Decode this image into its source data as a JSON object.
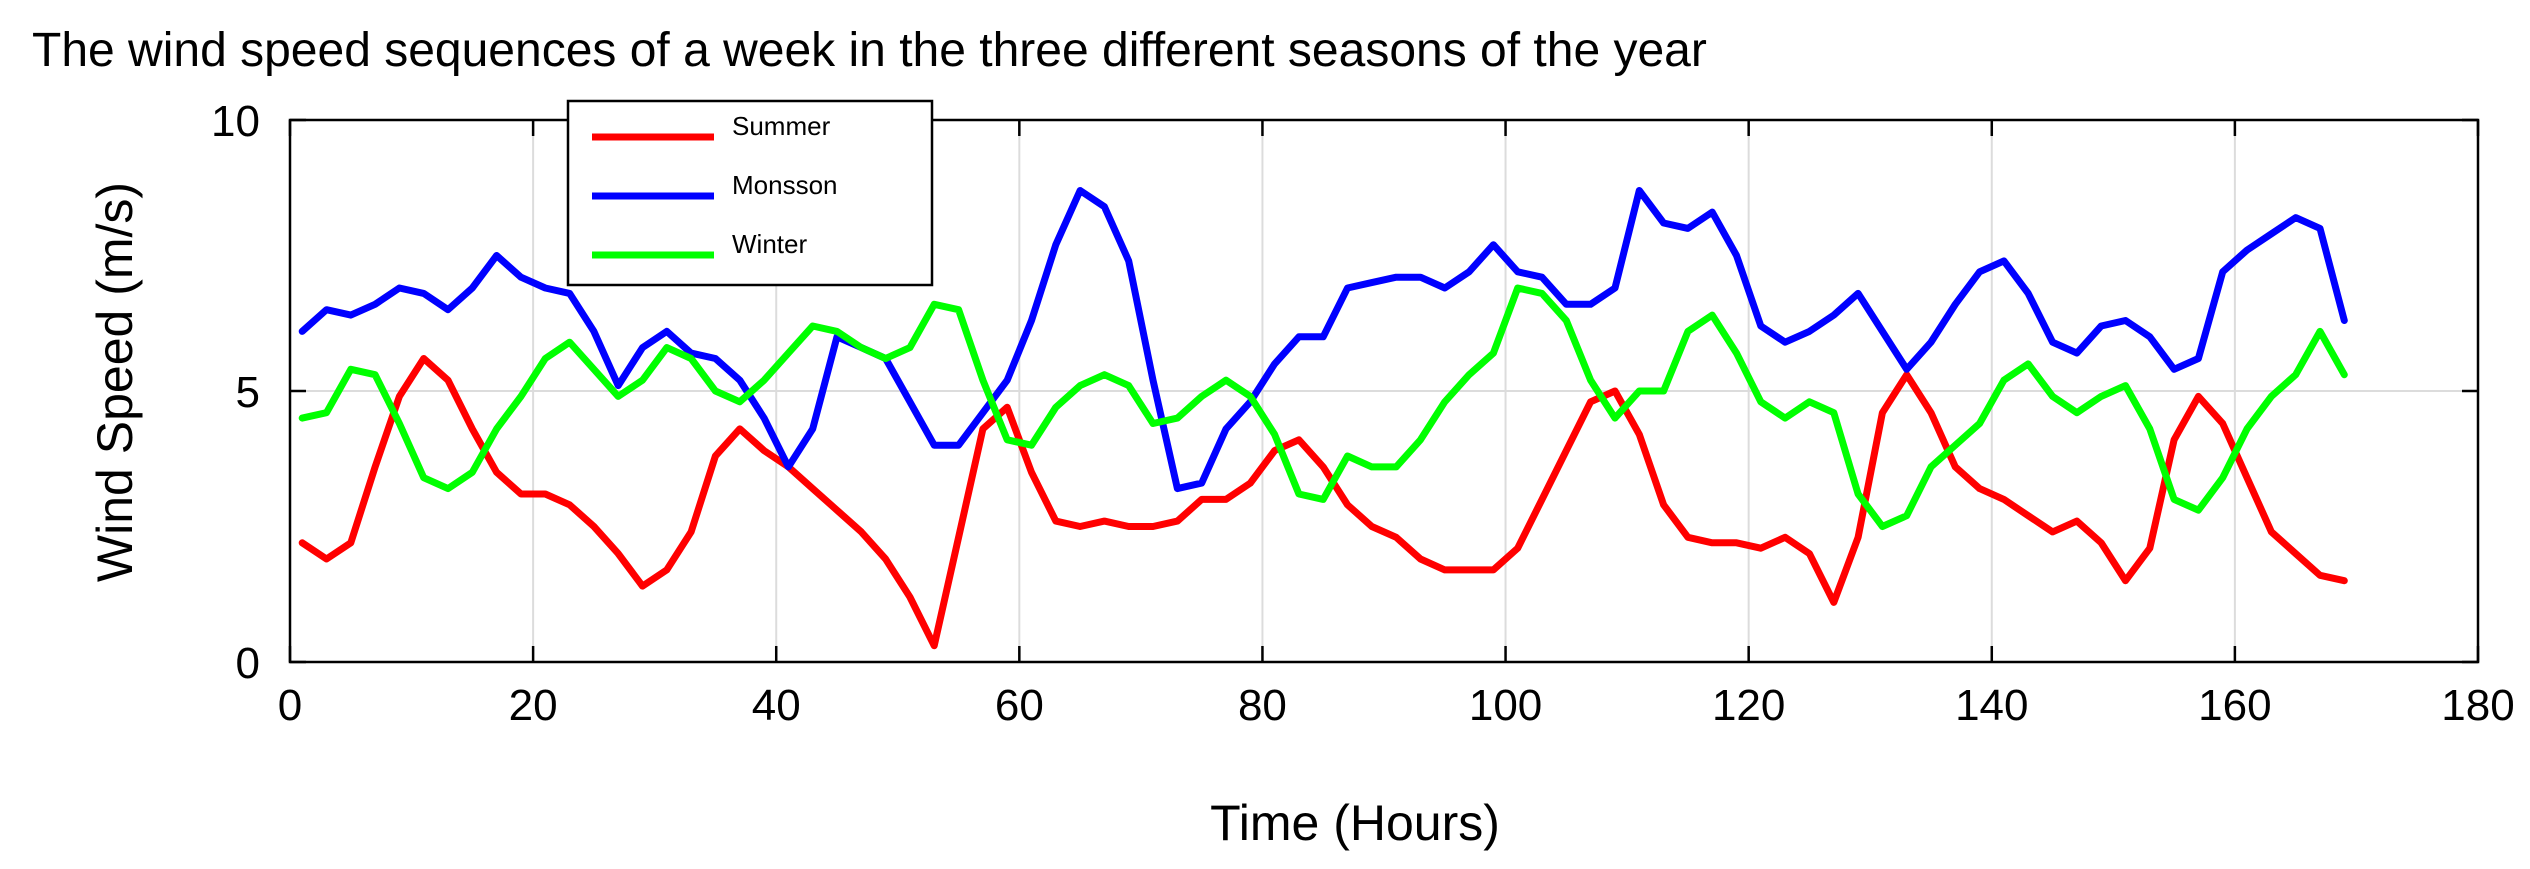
{
  "chart_data": {
    "type": "line",
    "title": "The wind speed sequences of a week in the three different seasons of the year",
    "xlabel": "Time (Hours)",
    "ylabel": "Wind Speed (m/s)",
    "xlim": [
      0,
      180
    ],
    "ylim": [
      0,
      10
    ],
    "xticks": [
      0,
      20,
      40,
      60,
      80,
      100,
      120,
      140,
      160,
      180
    ],
    "yticks": [
      0,
      5,
      10
    ],
    "grid": true,
    "legend_position": "top-left",
    "x": [
      1,
      3,
      5,
      7,
      9,
      11,
      13,
      15,
      17,
      19,
      21,
      23,
      25,
      27,
      29,
      31,
      33,
      35,
      37,
      39,
      41,
      43,
      45,
      47,
      49,
      51,
      53,
      55,
      57,
      59,
      61,
      63,
      65,
      67,
      69,
      71,
      73,
      75,
      77,
      79,
      81,
      83,
      85,
      87,
      89,
      91,
      93,
      95,
      97,
      99,
      101,
      103,
      105,
      107,
      109,
      111,
      113,
      115,
      117,
      119,
      121,
      123,
      125,
      127,
      129,
      131,
      133,
      135,
      137,
      139,
      141,
      143,
      145,
      147,
      149,
      151,
      153,
      155,
      157,
      159,
      161,
      163,
      165,
      167,
      169
    ],
    "series": [
      {
        "name": "Summer",
        "color": "#ff0000",
        "values": [
          2.2,
          1.9,
          2.2,
          3.6,
          4.9,
          5.6,
          5.2,
          4.3,
          3.5,
          3.1,
          3.1,
          2.9,
          2.5,
          2.0,
          1.4,
          1.7,
          2.4,
          3.8,
          4.3,
          3.9,
          3.6,
          3.2,
          2.8,
          2.4,
          1.9,
          1.2,
          0.3,
          2.3,
          4.3,
          4.7,
          3.5,
          2.6,
          2.5,
          2.6,
          2.5,
          2.5,
          2.6,
          3.0,
          3.0,
          3.3,
          3.9,
          4.1,
          3.6,
          2.9,
          2.5,
          2.3,
          1.9,
          1.7,
          1.7,
          1.7,
          2.1,
          3.0,
          3.9,
          4.8,
          5.0,
          4.2,
          2.9,
          2.3,
          2.2,
          2.2,
          2.1,
          2.3,
          2.0,
          1.1,
          2.3,
          4.6,
          5.3,
          4.6,
          3.6,
          3.2,
          3.0,
          2.7,
          2.4,
          2.6,
          2.2,
          1.5,
          2.1,
          4.1,
          4.9,
          4.4,
          3.4,
          2.4,
          2.0,
          1.6,
          1.5
        ]
      },
      {
        "name": "Monsson",
        "color": "#0000ff",
        "values": [
          6.1,
          6.5,
          6.4,
          6.6,
          6.9,
          6.8,
          6.5,
          6.9,
          7.5,
          7.1,
          6.9,
          6.8,
          6.1,
          5.1,
          5.8,
          6.1,
          5.7,
          5.6,
          5.2,
          4.5,
          3.6,
          4.3,
          6.0,
          5.8,
          5.6,
          4.8,
          4.0,
          4.0,
          4.6,
          5.2,
          6.3,
          7.7,
          8.7,
          8.4,
          7.4,
          5.2,
          3.2,
          3.3,
          4.3,
          4.8,
          5.5,
          6.0,
          6.0,
          6.9,
          7.0,
          7.1,
          7.1,
          6.9,
          7.2,
          7.7,
          7.2,
          7.1,
          6.6,
          6.6,
          6.9,
          8.7,
          8.1,
          8.0,
          8.3,
          7.5,
          6.2,
          5.9,
          6.1,
          6.4,
          6.8,
          6.1,
          5.4,
          5.9,
          6.6,
          7.2,
          7.4,
          6.8,
          5.9,
          5.7,
          6.2,
          6.3,
          6.0,
          5.4,
          5.6,
          7.2,
          7.6,
          7.9,
          8.2,
          8.0,
          6.3
        ]
      },
      {
        "name": "Winter",
        "color": "#00ff00",
        "values": [
          4.5,
          4.6,
          5.4,
          5.3,
          4.4,
          3.4,
          3.2,
          3.5,
          4.3,
          4.9,
          5.6,
          5.9,
          5.4,
          4.9,
          5.2,
          5.8,
          5.6,
          5.0,
          4.8,
          5.2,
          5.7,
          6.2,
          6.1,
          5.8,
          5.6,
          5.8,
          6.6,
          6.5,
          5.2,
          4.1,
          4.0,
          4.7,
          5.1,
          5.3,
          5.1,
          4.4,
          4.5,
          4.9,
          5.2,
          4.9,
          4.2,
          3.1,
          3.0,
          3.8,
          3.6,
          3.6,
          4.1,
          4.8,
          5.3,
          5.7,
          6.9,
          6.8,
          6.3,
          5.2,
          4.5,
          5.0,
          5.0,
          6.1,
          6.4,
          5.7,
          4.8,
          4.5,
          4.8,
          4.6,
          3.1,
          2.5,
          2.7,
          3.6,
          4.0,
          4.4,
          5.2,
          5.5,
          4.9,
          4.6,
          4.9,
          5.1,
          4.3,
          3.0,
          2.8,
          3.4,
          4.3,
          4.9,
          5.3,
          6.1,
          5.3
        ]
      }
    ]
  }
}
